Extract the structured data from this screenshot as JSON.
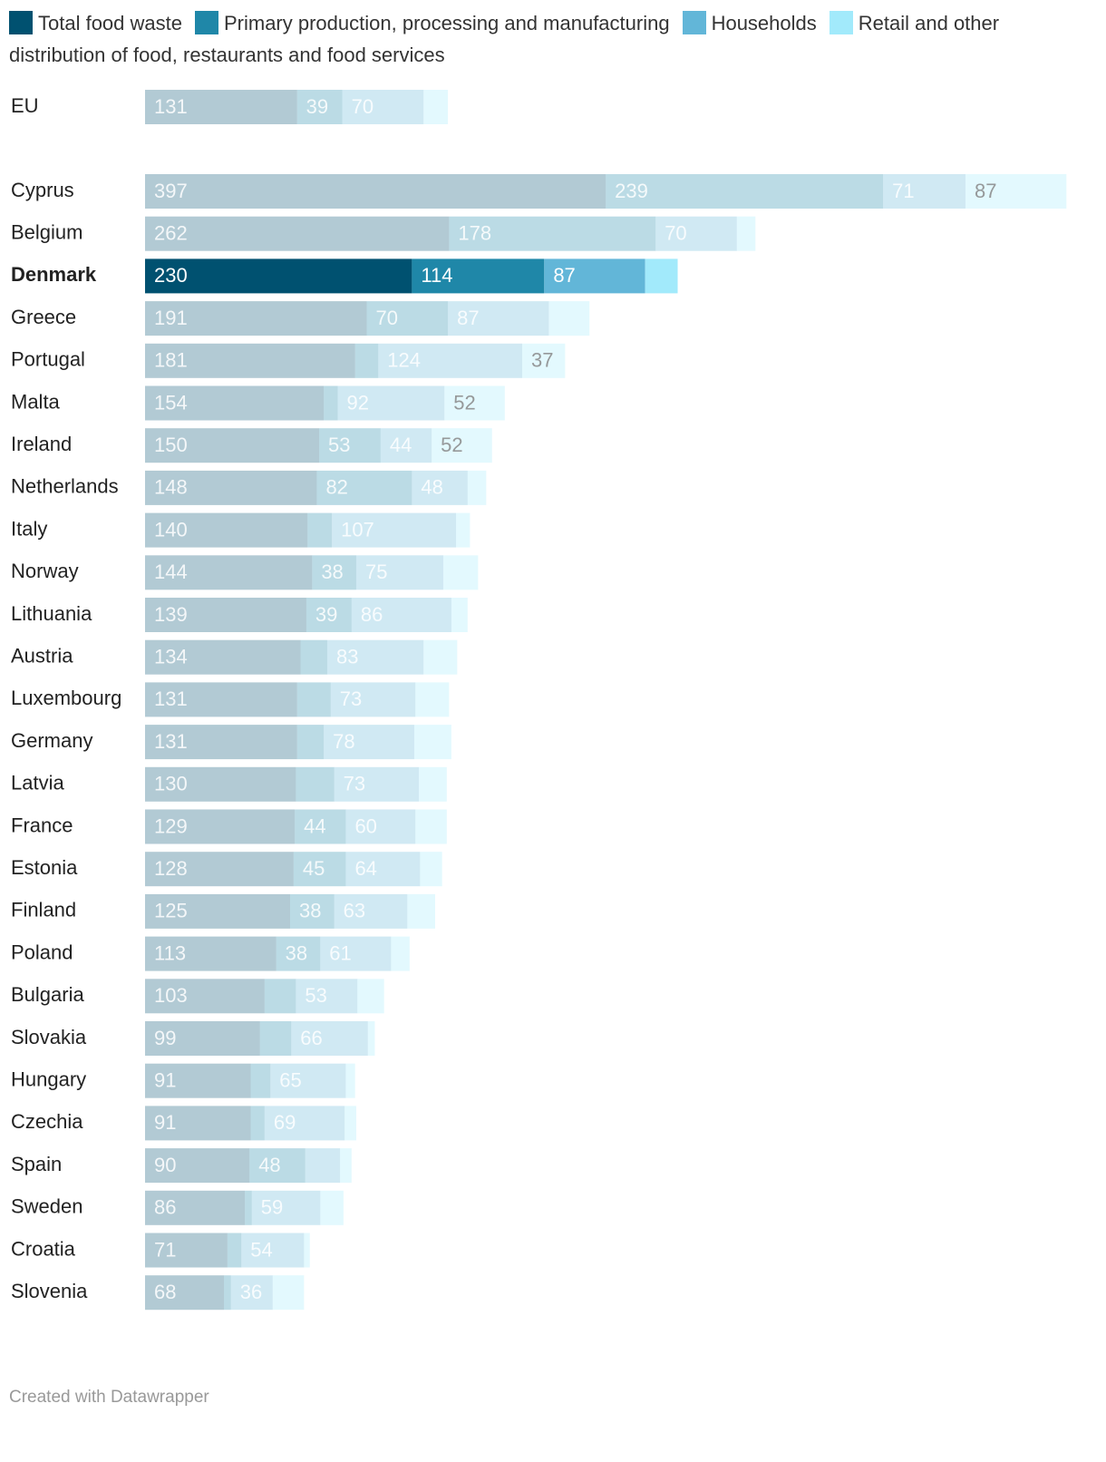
{
  "chart_data": {
    "type": "stacked-bar",
    "highlight": "Denmark",
    "categories": [
      "EU",
      "Cyprus",
      "Belgium",
      "Denmark",
      "Greece",
      "Portugal",
      "Malta",
      "Ireland",
      "Netherlands",
      "Italy",
      "Norway",
      "Lithuania",
      "Austria",
      "Luxembourg",
      "Germany",
      "Latvia",
      "France",
      "Estonia",
      "Finland",
      "Poland",
      "Bulgaria",
      "Slovakia",
      "Hungary",
      "Czechia",
      "Spain",
      "Sweden",
      "Croatia",
      "Slovenia"
    ],
    "series": [
      {
        "name": "Total food waste",
        "color": "#005170",
        "values": [
          131,
          397,
          262,
          230,
          191,
          181,
          154,
          150,
          148,
          140,
          144,
          139,
          134,
          131,
          131,
          130,
          129,
          128,
          125,
          113,
          103,
          99,
          91,
          91,
          90,
          86,
          71,
          68
        ]
      },
      {
        "name": "Primary production, processing and manufacturing",
        "color": "#1f87a8",
        "values": [
          39,
          239,
          178,
          114,
          70,
          20,
          12,
          53,
          82,
          21,
          38,
          39,
          23,
          29,
          23,
          33,
          44,
          45,
          38,
          38,
          27,
          27,
          17,
          12,
          48,
          6,
          12,
          6
        ]
      },
      {
        "name": "Households",
        "color": "#62b6d8",
        "values": [
          70,
          71,
          70,
          87,
          87,
          124,
          92,
          44,
          48,
          107,
          75,
          86,
          83,
          73,
          78,
          73,
          60,
          64,
          63,
          61,
          53,
          66,
          65,
          69,
          30,
          59,
          54,
          36
        ]
      },
      {
        "name": "Retail and other distribution of food, restaurants and food services",
        "color": "#a2eafb",
        "values": [
          21,
          87,
          16,
          28,
          35,
          37,
          52,
          52,
          16,
          12,
          30,
          14,
          29,
          29,
          32,
          24,
          27,
          19,
          24,
          16,
          23,
          6,
          8,
          10,
          10,
          20,
          5,
          27
        ]
      }
    ],
    "footer": "Created with Datawrapper"
  }
}
